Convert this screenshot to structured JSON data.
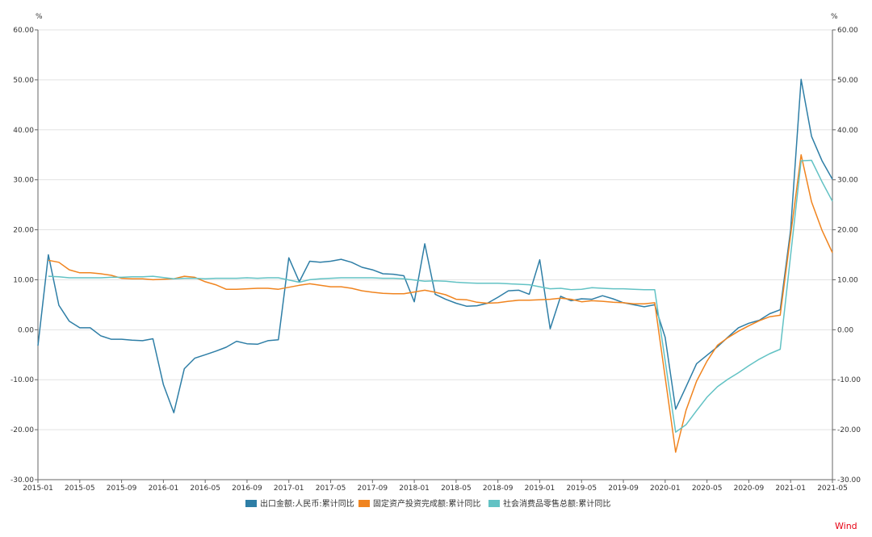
{
  "chart_data": {
    "type": "line",
    "unit_left": "%",
    "unit_right": "%",
    "ylim": [
      -30,
      60
    ],
    "y_ticks": [
      "60.00",
      "50.00",
      "40.00",
      "30.00",
      "20.00",
      "10.00",
      "0.00",
      "-10.00",
      "-20.00",
      "-30.00"
    ],
    "y_tick_values": [
      60,
      50,
      40,
      30,
      20,
      10,
      0,
      -10,
      -20,
      -30
    ],
    "x_ticks": [
      "2015-01",
      "2015-05",
      "2015-09",
      "2016-01",
      "2016-05",
      "2016-09",
      "2017-01",
      "2017-05",
      "2017-09",
      "2018-01",
      "2018-05",
      "2018-09",
      "2019-01",
      "2019-05",
      "2019-09",
      "2020-01",
      "2020-05",
      "2020-09",
      "2021-01",
      "2021-05"
    ],
    "x_start": "2015-01",
    "x_end": "2021-05",
    "grid": true,
    "legend_position": "bottom",
    "source_label": "Wind",
    "series": [
      {
        "name": "出口金额:人民币:累计同比",
        "color": "#2e7ea6",
        "points": [
          [
            "2015-01",
            -3.2
          ],
          [
            "2015-02",
            15.0
          ],
          [
            "2015-03",
            4.9
          ],
          [
            "2015-04",
            1.7
          ],
          [
            "2015-05",
            0.4
          ],
          [
            "2015-06",
            0.4
          ],
          [
            "2015-07",
            -1.2
          ],
          [
            "2015-08",
            -1.9
          ],
          [
            "2015-09",
            -1.9
          ],
          [
            "2015-10",
            -2.1
          ],
          [
            "2015-11",
            -2.2
          ],
          [
            "2015-12",
            -1.8
          ],
          [
            "2016-01",
            -11.0
          ],
          [
            "2016-02",
            -16.6
          ],
          [
            "2016-03",
            -7.8
          ],
          [
            "2016-04",
            -5.7
          ],
          [
            "2016-05",
            -5.0
          ],
          [
            "2016-06",
            -4.3
          ],
          [
            "2016-07",
            -3.5
          ],
          [
            "2016-08",
            -2.3
          ],
          [
            "2016-09",
            -2.8
          ],
          [
            "2016-10",
            -2.9
          ],
          [
            "2016-11",
            -2.2
          ],
          [
            "2016-12",
            -2.0
          ],
          [
            "2017-01",
            14.4
          ],
          [
            "2017-02",
            9.6
          ],
          [
            "2017-03",
            13.7
          ],
          [
            "2017-04",
            13.5
          ],
          [
            "2017-05",
            13.7
          ],
          [
            "2017-06",
            14.1
          ],
          [
            "2017-07",
            13.5
          ],
          [
            "2017-08",
            12.5
          ],
          [
            "2017-09",
            12.0
          ],
          [
            "2017-10",
            11.2
          ],
          [
            "2017-11",
            11.1
          ],
          [
            "2017-12",
            10.8
          ],
          [
            "2018-01",
            5.6
          ],
          [
            "2018-02",
            17.2
          ],
          [
            "2018-03",
            7.1
          ],
          [
            "2018-04",
            6.1
          ],
          [
            "2018-05",
            5.3
          ],
          [
            "2018-06",
            4.7
          ],
          [
            "2018-07",
            4.8
          ],
          [
            "2018-08",
            5.3
          ],
          [
            "2018-09",
            6.5
          ],
          [
            "2018-10",
            7.8
          ],
          [
            "2018-11",
            7.9
          ],
          [
            "2018-12",
            7.1
          ],
          [
            "2019-01",
            14.0
          ],
          [
            "2019-02",
            0.2
          ],
          [
            "2019-03",
            6.7
          ],
          [
            "2019-04",
            5.8
          ],
          [
            "2019-05",
            6.2
          ],
          [
            "2019-06",
            6.1
          ],
          [
            "2019-07",
            6.8
          ],
          [
            "2019-08",
            6.2
          ],
          [
            "2019-09",
            5.4
          ],
          [
            "2019-10",
            5.0
          ],
          [
            "2019-11",
            4.6
          ],
          [
            "2019-12",
            5.0
          ],
          [
            "2020-01",
            -1.5
          ],
          [
            "2020-02",
            -15.9
          ],
          [
            "2020-03",
            -11.4
          ],
          [
            "2020-04",
            -6.8
          ],
          [
            "2020-05",
            -5.1
          ],
          [
            "2020-06",
            -3.4
          ],
          [
            "2020-07",
            -1.5
          ],
          [
            "2020-08",
            0.4
          ],
          [
            "2020-09",
            1.3
          ],
          [
            "2020-10",
            1.9
          ],
          [
            "2020-11",
            3.2
          ],
          [
            "2020-12",
            4.0
          ],
          [
            "2021-01",
            20.0
          ],
          [
            "2021-02",
            50.1
          ],
          [
            "2021-03",
            38.7
          ],
          [
            "2021-04",
            33.8
          ],
          [
            "2021-05",
            30.1
          ]
        ]
      },
      {
        "name": "固定资产投资完成额:累计同比",
        "color": "#f0841f",
        "points": [
          [
            "2015-02",
            13.9
          ],
          [
            "2015-03",
            13.5
          ],
          [
            "2015-04",
            12.0
          ],
          [
            "2015-05",
            11.4
          ],
          [
            "2015-06",
            11.4
          ],
          [
            "2015-07",
            11.2
          ],
          [
            "2015-08",
            10.9
          ],
          [
            "2015-09",
            10.3
          ],
          [
            "2015-10",
            10.2
          ],
          [
            "2015-11",
            10.2
          ],
          [
            "2015-12",
            10.0
          ],
          [
            "2016-02",
            10.2
          ],
          [
            "2016-03",
            10.7
          ],
          [
            "2016-04",
            10.5
          ],
          [
            "2016-05",
            9.6
          ],
          [
            "2016-06",
            9.0
          ],
          [
            "2016-07",
            8.1
          ],
          [
            "2016-08",
            8.1
          ],
          [
            "2016-09",
            8.2
          ],
          [
            "2016-10",
            8.3
          ],
          [
            "2016-11",
            8.3
          ],
          [
            "2016-12",
            8.1
          ],
          [
            "2017-02",
            8.9
          ],
          [
            "2017-03",
            9.2
          ],
          [
            "2017-04",
            8.9
          ],
          [
            "2017-05",
            8.6
          ],
          [
            "2017-06",
            8.6
          ],
          [
            "2017-07",
            8.3
          ],
          [
            "2017-08",
            7.8
          ],
          [
            "2017-09",
            7.5
          ],
          [
            "2017-10",
            7.3
          ],
          [
            "2017-11",
            7.2
          ],
          [
            "2017-12",
            7.2
          ],
          [
            "2018-02",
            7.9
          ],
          [
            "2018-03",
            7.5
          ],
          [
            "2018-04",
            7.0
          ],
          [
            "2018-05",
            6.1
          ],
          [
            "2018-06",
            6.0
          ],
          [
            "2018-07",
            5.5
          ],
          [
            "2018-08",
            5.3
          ],
          [
            "2018-09",
            5.4
          ],
          [
            "2018-10",
            5.7
          ],
          [
            "2018-11",
            5.9
          ],
          [
            "2018-12",
            5.9
          ],
          [
            "2019-02",
            6.1
          ],
          [
            "2019-03",
            6.3
          ],
          [
            "2019-04",
            6.1
          ],
          [
            "2019-05",
            5.6
          ],
          [
            "2019-06",
            5.8
          ],
          [
            "2019-07",
            5.7
          ],
          [
            "2019-08",
            5.5
          ],
          [
            "2019-09",
            5.4
          ],
          [
            "2019-10",
            5.2
          ],
          [
            "2019-11",
            5.2
          ],
          [
            "2019-12",
            5.4
          ],
          [
            "2020-02",
            -24.5
          ],
          [
            "2020-03",
            -16.1
          ],
          [
            "2020-04",
            -10.3
          ],
          [
            "2020-05",
            -6.3
          ],
          [
            "2020-06",
            -3.1
          ],
          [
            "2020-07",
            -1.6
          ],
          [
            "2020-08",
            -0.3
          ],
          [
            "2020-09",
            0.8
          ],
          [
            "2020-10",
            1.8
          ],
          [
            "2020-11",
            2.6
          ],
          [
            "2020-12",
            2.9
          ],
          [
            "2021-02",
            35.0
          ],
          [
            "2021-03",
            25.6
          ],
          [
            "2021-04",
            19.9
          ],
          [
            "2021-05",
            15.4
          ]
        ]
      },
      {
        "name": "社会消费品零售总额:累计同比",
        "color": "#62c2c4",
        "points": [
          [
            "2015-02",
            10.7
          ],
          [
            "2015-03",
            10.6
          ],
          [
            "2015-04",
            10.4
          ],
          [
            "2015-05",
            10.4
          ],
          [
            "2015-06",
            10.4
          ],
          [
            "2015-07",
            10.4
          ],
          [
            "2015-08",
            10.5
          ],
          [
            "2015-09",
            10.5
          ],
          [
            "2015-10",
            10.6
          ],
          [
            "2015-11",
            10.6
          ],
          [
            "2015-12",
            10.7
          ],
          [
            "2016-02",
            10.2
          ],
          [
            "2016-03",
            10.3
          ],
          [
            "2016-04",
            10.3
          ],
          [
            "2016-05",
            10.2
          ],
          [
            "2016-06",
            10.3
          ],
          [
            "2016-07",
            10.3
          ],
          [
            "2016-08",
            10.3
          ],
          [
            "2016-09",
            10.4
          ],
          [
            "2016-10",
            10.3
          ],
          [
            "2016-11",
            10.4
          ],
          [
            "2016-12",
            10.4
          ],
          [
            "2017-02",
            9.5
          ],
          [
            "2017-03",
            10.0
          ],
          [
            "2017-04",
            10.2
          ],
          [
            "2017-05",
            10.3
          ],
          [
            "2017-06",
            10.4
          ],
          [
            "2017-07",
            10.4
          ],
          [
            "2017-08",
            10.4
          ],
          [
            "2017-09",
            10.4
          ],
          [
            "2017-10",
            10.3
          ],
          [
            "2017-11",
            10.3
          ],
          [
            "2017-12",
            10.2
          ],
          [
            "2018-02",
            9.7
          ],
          [
            "2018-03",
            9.8
          ],
          [
            "2018-04",
            9.7
          ],
          [
            "2018-05",
            9.5
          ],
          [
            "2018-06",
            9.4
          ],
          [
            "2018-07",
            9.3
          ],
          [
            "2018-08",
            9.3
          ],
          [
            "2018-09",
            9.3
          ],
          [
            "2018-10",
            9.2
          ],
          [
            "2018-11",
            9.1
          ],
          [
            "2018-12",
            9.0
          ],
          [
            "2019-02",
            8.2
          ],
          [
            "2019-03",
            8.3
          ],
          [
            "2019-04",
            8.0
          ],
          [
            "2019-05",
            8.1
          ],
          [
            "2019-06",
            8.4
          ],
          [
            "2019-07",
            8.3
          ],
          [
            "2019-08",
            8.2
          ],
          [
            "2019-09",
            8.2
          ],
          [
            "2019-10",
            8.1
          ],
          [
            "2019-11",
            8.0
          ],
          [
            "2019-12",
            8.0
          ],
          [
            "2020-02",
            -20.5
          ],
          [
            "2020-03",
            -19.0
          ],
          [
            "2020-04",
            -16.2
          ],
          [
            "2020-05",
            -13.5
          ],
          [
            "2020-06",
            -11.4
          ],
          [
            "2020-07",
            -9.9
          ],
          [
            "2020-08",
            -8.6
          ],
          [
            "2020-09",
            -7.2
          ],
          [
            "2020-10",
            -5.9
          ],
          [
            "2020-11",
            -4.8
          ],
          [
            "2020-12",
            -3.9
          ],
          [
            "2021-02",
            33.8
          ],
          [
            "2021-03",
            33.9
          ],
          [
            "2021-04",
            29.6
          ],
          [
            "2021-05",
            25.7
          ]
        ]
      }
    ]
  }
}
